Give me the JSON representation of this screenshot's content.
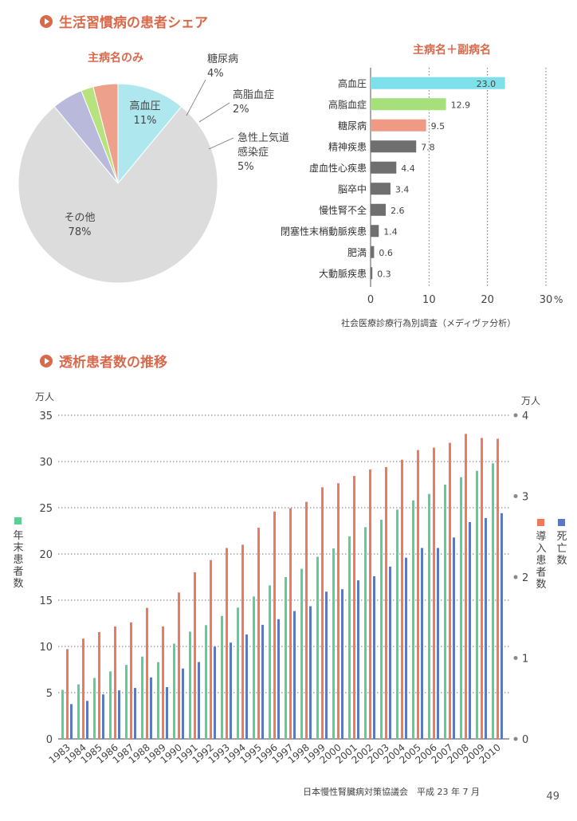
{
  "colors": {
    "accent": "#d9694a",
    "pie_hbp": "#aee8ee",
    "pie_lipid": "#eda08b",
    "pie_dm": "#b6e37d",
    "pie_ari": "#b9b9dc",
    "pie_other": "#dcdcdc",
    "bar_cyan": "#7ee0ea",
    "bar_green": "#a6e07a",
    "bar_salmon": "#ee9a84",
    "bar_gray": "#6f6f6f",
    "line_green": "#5ccf93",
    "line_orange": "#f0795c",
    "line_blue": "#5b78c2"
  },
  "section1": {
    "title": "生活習慣病の患者シェア"
  },
  "section2": {
    "title": "透析患者数の推移"
  },
  "page_number": "49",
  "chart_data": [
    {
      "type": "pie",
      "title": "主病名のみ",
      "slices": [
        {
          "label": "高血圧",
          "value": 11,
          "value_label": "11%",
          "color": "#aee8ee"
        },
        {
          "label": "その他",
          "value": 78,
          "value_label": "78%",
          "color": "#dcdcdc"
        },
        {
          "label": "急性上気道感染症",
          "label_lines": [
            "急性上気道",
            "感染症"
          ],
          "value": 5,
          "value_label": "5%",
          "color": "#b9b9dc"
        },
        {
          "label": "高脂血症",
          "value": 2,
          "value_label": "2%",
          "color": "#b6e37d"
        },
        {
          "label": "糖尿病",
          "value": 4,
          "value_label": "4%",
          "color": "#eda08b"
        }
      ]
    },
    {
      "type": "bar",
      "orientation": "horizontal",
      "title": "主病名＋副病名",
      "categories": [
        "高血圧",
        "高脂血症",
        "糖尿病",
        "精神疾患",
        "虚血性心疾患",
        "脳卒中",
        "慢性腎不全",
        "閉塞性末梢動脈疾患",
        "肥満",
        "大動脈疾患"
      ],
      "values": [
        23.0,
        12.9,
        9.5,
        7.8,
        4.4,
        3.4,
        2.6,
        1.4,
        0.6,
        0.3
      ],
      "value_labels": [
        "23.0",
        "12.9",
        "9.5",
        "7.8",
        "4.4",
        "3.4",
        "2.6",
        "1.4",
        "0.6",
        "0.3"
      ],
      "colors": [
        "#7ee0ea",
        "#a6e07a",
        "#ee9a84",
        "#6f6f6f",
        "#6f6f6f",
        "#6f6f6f",
        "#6f6f6f",
        "#6f6f6f",
        "#6f6f6f",
        "#6f6f6f"
      ],
      "xlim": [
        0,
        30
      ],
      "xticks": [
        "0",
        "10",
        "20",
        "30"
      ],
      "xunit": "%",
      "grid": "dotted vertical",
      "source": "社会医療診療行為別調査（メディヴァ分析）"
    },
    {
      "type": "bar",
      "title": "透析患者数の推移",
      "categories": [
        "1983",
        "1984",
        "1985",
        "1986",
        "1987",
        "1988",
        "1989",
        "1990",
        "1991",
        "1992",
        "1993",
        "1994",
        "1995",
        "1996",
        "1997",
        "1998",
        "1999",
        "2000",
        "2001",
        "2002",
        "2003",
        "2004",
        "2005",
        "2006",
        "2007",
        "2008",
        "2009",
        "2010"
      ],
      "series": [
        {
          "name": "年末患者数",
          "axis": "left",
          "color": "#5ccf93",
          "values": [
            5.3,
            5.9,
            6.6,
            7.3,
            8.0,
            8.9,
            8.3,
            10.3,
            11.6,
            12.3,
            13.3,
            14.2,
            15.4,
            16.6,
            17.5,
            18.4,
            19.7,
            20.6,
            21.9,
            22.9,
            23.7,
            24.8,
            25.8,
            26.5,
            27.5,
            28.3,
            29.0,
            29.8
          ]
        },
        {
          "name": "導入患者数",
          "axis": "right",
          "color": "#f0795c",
          "values": [
            1.11,
            1.24,
            1.32,
            1.39,
            1.44,
            1.62,
            1.39,
            1.81,
            2.06,
            2.21,
            2.36,
            2.4,
            2.61,
            2.81,
            2.85,
            2.93,
            3.11,
            3.16,
            3.25,
            3.33,
            3.36,
            3.45,
            3.57,
            3.6,
            3.66,
            3.77,
            3.72,
            3.71
          ]
        },
        {
          "name": "死亡数",
          "axis": "right",
          "color": "#5b78c2",
          "values": [
            0.43,
            0.47,
            0.55,
            0.6,
            0.63,
            0.76,
            0.64,
            0.87,
            0.95,
            1.14,
            1.19,
            1.29,
            1.41,
            1.48,
            1.58,
            1.64,
            1.82,
            1.85,
            1.96,
            2.01,
            2.13,
            2.24,
            2.36,
            2.36,
            2.49,
            2.68,
            2.73,
            2.79
          ]
        }
      ],
      "y_left": {
        "label": "年末患者数",
        "unit": "万人",
        "lim": [
          0,
          35
        ],
        "ticks": [
          "0",
          "5",
          "10",
          "15",
          "20",
          "25",
          "30",
          "35"
        ]
      },
      "y_right": {
        "label_a": "導入患者数",
        "label_b": "死亡数",
        "unit": "万人",
        "lim": [
          0,
          4
        ],
        "ticks": [
          "0",
          "1",
          "2",
          "3",
          "4"
        ]
      },
      "grid": "dotted horizontal",
      "source": "日本慢性腎臓病対策協議会　平成 23 年 7 月"
    }
  ]
}
